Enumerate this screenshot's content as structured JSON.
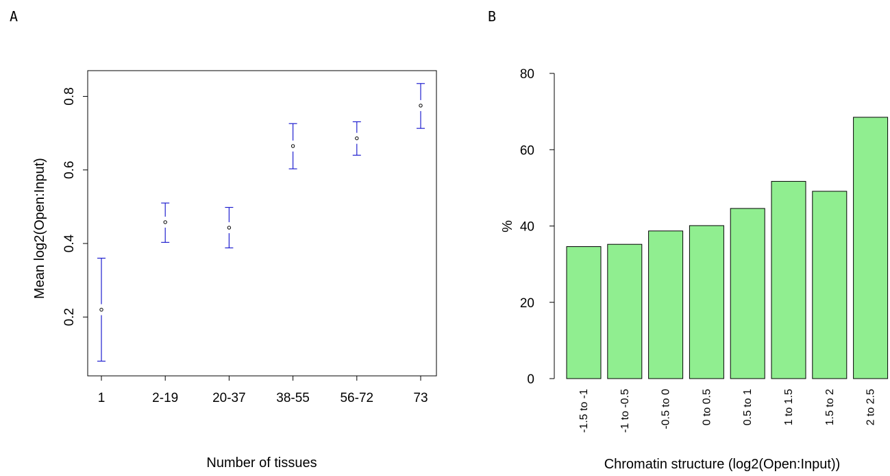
{
  "panels": {
    "a_label": "A",
    "b_label": "B"
  },
  "chart_data": [
    {
      "type": "scatter",
      "error_bars": true,
      "title": "",
      "xlabel": "Number of tissues",
      "ylabel": "Mean log2(Open:Input)",
      "categories": [
        "1",
        "2-19",
        "20-37",
        "38-55",
        "56-72",
        "73"
      ],
      "values": [
        0.22,
        0.458,
        0.443,
        0.665,
        0.686,
        0.775
      ],
      "lower": [
        0.08,
        0.403,
        0.388,
        0.603,
        0.64,
        0.713
      ],
      "upper": [
        0.36,
        0.51,
        0.498,
        0.726,
        0.731,
        0.835
      ],
      "ylim": [
        0.04,
        0.87
      ],
      "yticks": [
        0.2,
        0.4,
        0.6,
        0.8
      ],
      "ytick_labels": [
        "0.2",
        "0.4",
        "0.6",
        "0.8"
      ],
      "errorbar_color": "#1f1fcf",
      "point_color": "#000000",
      "grid": false
    },
    {
      "type": "bar",
      "title": "",
      "xlabel": "Chromatin structure (log2(Open:Input))",
      "ylabel": "%",
      "categories": [
        "-1.5 to -1",
        "-1 to -0.5",
        "-0.5 to 0",
        "0 to 0.5",
        "0.5 to 1",
        "1 to 1.5",
        "1.5 to 2",
        "2 to 2.5"
      ],
      "values": [
        34.6,
        35.2,
        38.7,
        40.1,
        44.6,
        51.7,
        49.1,
        68.5
      ],
      "ylim": [
        0,
        80
      ],
      "yticks": [
        0,
        20,
        40,
        60,
        80
      ],
      "ytick_labels": [
        "0",
        "20",
        "40",
        "60",
        "80"
      ],
      "bar_color": "#90ee90",
      "grid": false
    }
  ]
}
